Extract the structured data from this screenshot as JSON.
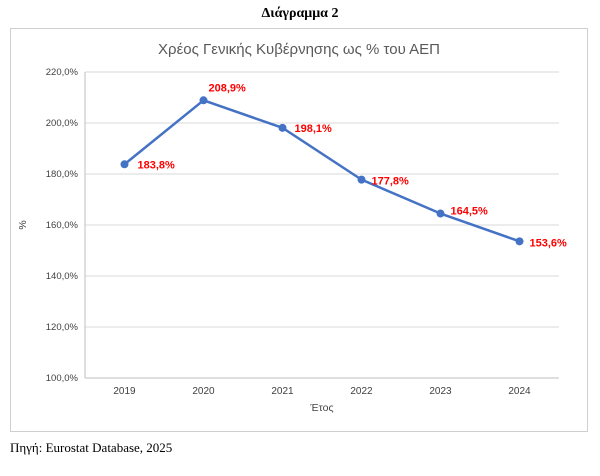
{
  "page": {
    "title": "Διάγραμμα 2",
    "source": "Πηγή: Eurostat Database, 2025"
  },
  "chart_data": {
    "type": "line",
    "title": "Χρέος Γενικής Κυβέρνησης ως % του ΑΕΠ",
    "categories": [
      "2019",
      "2020",
      "2021",
      "2022",
      "2023",
      "2024"
    ],
    "values": [
      183.8,
      208.9,
      198.1,
      177.8,
      164.5,
      153.6
    ],
    "point_labels": [
      "183,8%",
      "208,9%",
      "198,1%",
      "177,8%",
      "164,5%",
      "153,6%"
    ],
    "xlabel": "Έτος",
    "ylabel": "%",
    "ylim": [
      100,
      220
    ],
    "y_tick_step": 20,
    "y_tick_labels": [
      "100,0%",
      "120,0%",
      "140,0%",
      "160,0%",
      "180,0%",
      "200,0%",
      "220,0%"
    ],
    "grid": true,
    "legend": "none",
    "line_color": "#4472C4",
    "marker_color": "#4472C4",
    "label_color": "#FF0000",
    "grid_color": "#D9D9D9",
    "axis_color": "#BFBFBF",
    "tick_text_color": "#404040"
  }
}
